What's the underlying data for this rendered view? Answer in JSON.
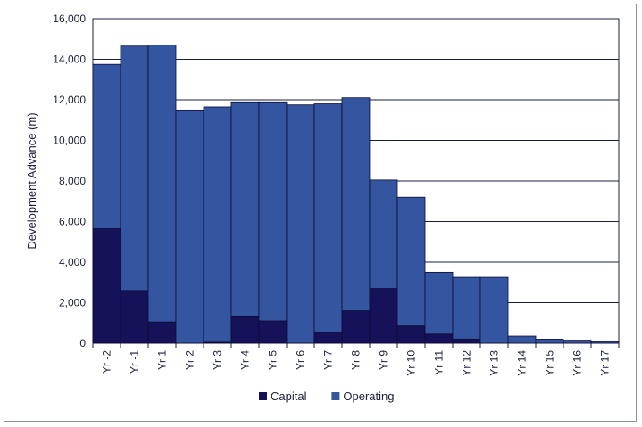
{
  "chart_data": {
    "type": "bar",
    "stacked": true,
    "categories": [
      "Yr -2",
      "Yr -1",
      "Yr 1",
      "Yr 2",
      "Yr 3",
      "Yr 4",
      "Yr 5",
      "Yr 6",
      "Yr 7",
      "Yr 8",
      "Yr 9",
      "Yr 10",
      "Yr 11",
      "Yr 12",
      "Yr 13",
      "Yr 14",
      "Yr 15",
      "Yr 16",
      "Yr 17"
    ],
    "series": [
      {
        "name": "Capital",
        "color": "#16125a",
        "values": [
          5650,
          2600,
          1050,
          0,
          50,
          1300,
          1100,
          0,
          550,
          1600,
          2700,
          850,
          450,
          200,
          0,
          0,
          0,
          0,
          0
        ]
      },
      {
        "name": "Operating",
        "color": "#3456a0",
        "values": [
          8100,
          12050,
          13650,
          11500,
          11600,
          10600,
          10800,
          11750,
          11250,
          10500,
          5350,
          6350,
          3050,
          3050,
          3250,
          350,
          200,
          150,
          80
        ]
      }
    ],
    "ylabel": "Development Advance (m)",
    "ylim": [
      0,
      16000
    ],
    "yticks": [
      "0",
      "2,000",
      "4,000",
      "6,000",
      "8,000",
      "10,000",
      "12,000",
      "14,000",
      "16,000"
    ],
    "grid": true,
    "legend_position": "bottom"
  }
}
